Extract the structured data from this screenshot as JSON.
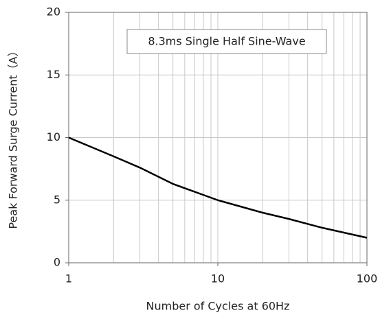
{
  "chart_data": {
    "type": "line",
    "annotation": "8.3ms Single Half Sine-Wave",
    "x_label": "Number of Cycles at 60Hz",
    "y_label": "Peak Forward Surge Current（A）",
    "x": [
      1,
      2,
      3,
      5,
      10,
      20,
      30,
      50,
      100
    ],
    "series": [
      {
        "name": "Peak Forward Surge Current",
        "color": "#000000",
        "values": [
          10,
          8.5,
          7.6,
          6.3,
          5,
          4,
          3.5,
          2.8,
          2
        ]
      }
    ],
    "xlim": [
      1,
      100
    ],
    "xticks": [
      1,
      10,
      100
    ],
    "xscale": "log",
    "ylim": [
      0,
      20
    ],
    "yticks": [
      0,
      5,
      10,
      15,
      20
    ],
    "grid": true
  }
}
